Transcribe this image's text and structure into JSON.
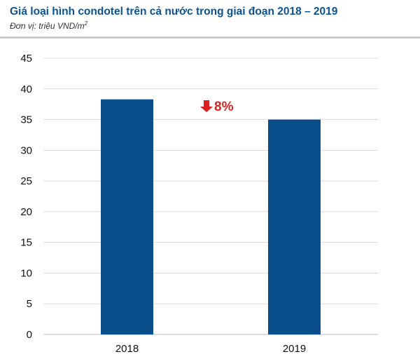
{
  "header": {
    "title": "Giá loại hình condotel trên cả nước trong giai đoạn 2018 – 2019",
    "unit_prefix": "Đơn vị: triệu VND/m",
    "unit_sup": "2"
  },
  "chart_data": {
    "type": "bar",
    "categories": [
      "2018",
      "2019"
    ],
    "values": [
      38.3,
      35.0
    ],
    "ylim": [
      0,
      45
    ],
    "yticks": [
      0,
      5,
      10,
      15,
      20,
      25,
      30,
      35,
      40,
      45
    ],
    "grid": true,
    "bar_color": "#0b4e8c",
    "annotation": {
      "text": "8%",
      "icon": "down-arrow-icon",
      "color": "#e02020"
    }
  }
}
